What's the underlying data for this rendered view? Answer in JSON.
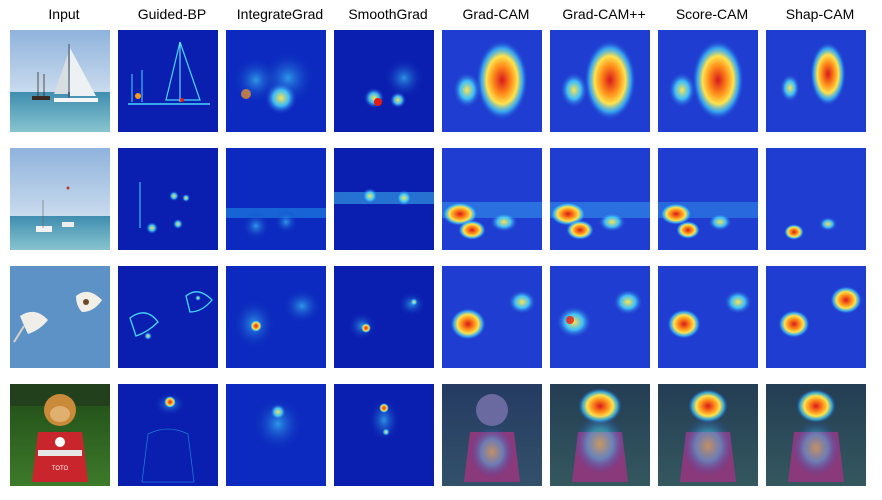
{
  "headers": [
    "Input",
    "Guided-BP",
    "IntegrateGrad",
    "SmoothGrad",
    "Grad-CAM",
    "Grad-CAM++",
    "Score-CAM",
    "Shap-CAM"
  ],
  "rows": [
    {
      "subject": "sailboats",
      "text_in_image": ""
    },
    {
      "subject": "boats-at-sea",
      "text_in_image": ""
    },
    {
      "subject": "seagulls",
      "text_in_image": ""
    },
    {
      "subject": "dog-in-jersey",
      "text_in_image": "TOTO"
    }
  ],
  "colors": {
    "jet_low": "#0a1fb0",
    "jet_mid": "#2bd1ff",
    "jet_high": "#e81b10",
    "sky": "#a9c6e6",
    "sea": "#4f9bb5"
  }
}
